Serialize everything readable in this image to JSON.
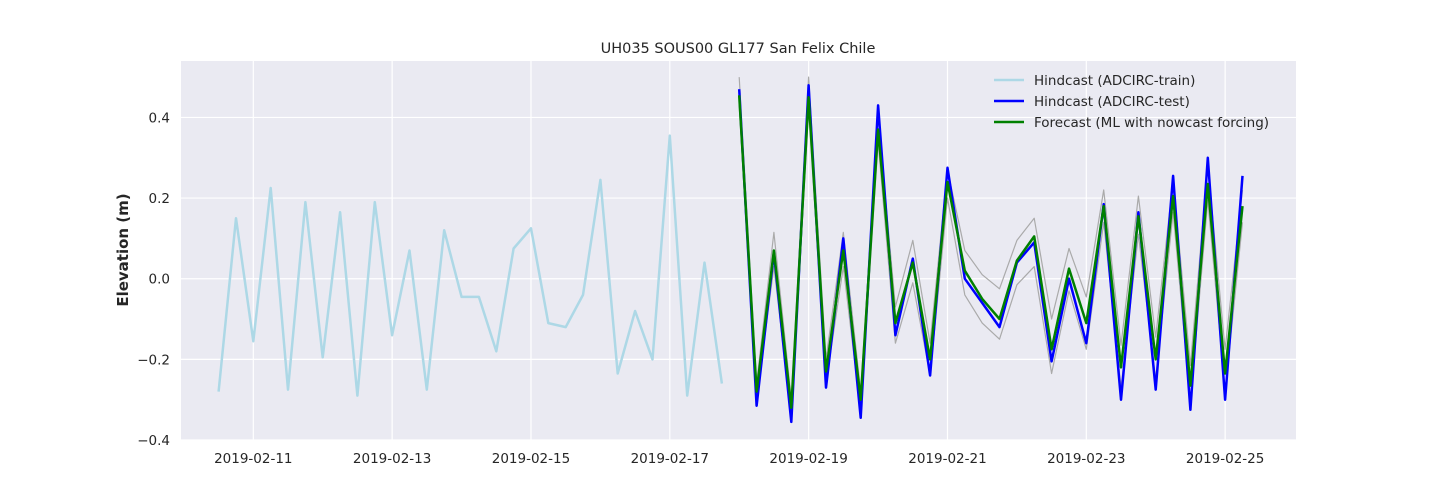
{
  "chart_data": {
    "type": "line",
    "title": "UH035 SOUS00 GL177 San Felix Chile",
    "xlabel": "",
    "ylabel": "Elevation (m)",
    "x_start": "2019-02-10",
    "x_end": "2019-02-26",
    "xlim": [
      "2019-02-09 23:00",
      "2019-02-26 00:30"
    ],
    "ylim": [
      -0.4,
      0.54
    ],
    "xticks": [
      "2019-02-11",
      "2019-02-13",
      "2019-02-15",
      "2019-02-17",
      "2019-02-19",
      "2019-02-21",
      "2019-02-23",
      "2019-02-25"
    ],
    "yticks": [
      -0.4,
      -0.2,
      0.0,
      0.2,
      0.4
    ],
    "ytick_labels": [
      "−0.4",
      "−0.2",
      "0.0",
      "0.2",
      "0.4"
    ],
    "grid": true,
    "legend_position": "top-right",
    "background_color": "#eaeaf2",
    "band_color": "#aaaaaa",
    "series": [
      {
        "name": "Hindcast (ADCIRC-train)",
        "color": "#add8e6",
        "width": 2.5,
        "points": [
          [
            "2019-02-10 12:00",
            -0.28
          ],
          [
            "2019-02-10 18:00",
            0.15
          ],
          [
            "2019-02-11 00:00",
            -0.155
          ],
          [
            "2019-02-11 06:00",
            0.225
          ],
          [
            "2019-02-11 12:00",
            -0.275
          ],
          [
            "2019-02-11 18:00",
            0.19
          ],
          [
            "2019-02-12 00:00",
            -0.195
          ],
          [
            "2019-02-12 06:00",
            0.165
          ],
          [
            "2019-02-12 12:00",
            -0.29
          ],
          [
            "2019-02-12 18:00",
            0.19
          ],
          [
            "2019-02-13 00:00",
            -0.14
          ],
          [
            "2019-02-13 06:00",
            0.07
          ],
          [
            "2019-02-13 12:00",
            -0.275
          ],
          [
            "2019-02-13 18:00",
            0.12
          ],
          [
            "2019-02-14 00:00",
            -0.045
          ],
          [
            "2019-02-14 06:00",
            -0.045
          ],
          [
            "2019-02-14 12:00",
            -0.18
          ],
          [
            "2019-02-14 18:00",
            0.075
          ],
          [
            "2019-02-15 00:00",
            0.125
          ],
          [
            "2019-02-15 06:00",
            -0.11
          ],
          [
            "2019-02-15 12:00",
            -0.12
          ],
          [
            "2019-02-15 18:00",
            -0.04
          ],
          [
            "2019-02-16 00:00",
            0.245
          ],
          [
            "2019-02-16 06:00",
            -0.235
          ],
          [
            "2019-02-16 12:00",
            -0.08
          ],
          [
            "2019-02-16 18:00",
            -0.2
          ],
          [
            "2019-02-17 00:00",
            0.355
          ],
          [
            "2019-02-17 06:00",
            -0.29
          ],
          [
            "2019-02-17 12:00",
            0.04
          ],
          [
            "2019-02-17 18:00",
            -0.26
          ]
        ]
      },
      {
        "name": "Hindcast (ADCIRC-test)",
        "color": "#0000ff",
        "width": 2.5,
        "points": [
          [
            "2019-02-18 00:00",
            0.47
          ],
          [
            "2019-02-18 06:00",
            -0.315
          ],
          [
            "2019-02-18 12:00",
            0.065
          ],
          [
            "2019-02-18 18:00",
            -0.355
          ],
          [
            "2019-02-19 00:00",
            0.48
          ],
          [
            "2019-02-19 06:00",
            -0.27
          ],
          [
            "2019-02-19 12:00",
            0.1
          ],
          [
            "2019-02-19 18:00",
            -0.345
          ],
          [
            "2019-02-20 00:00",
            0.43
          ],
          [
            "2019-02-20 06:00",
            -0.14
          ],
          [
            "2019-02-20 12:00",
            0.05
          ],
          [
            "2019-02-20 18:00",
            -0.24
          ],
          [
            "2019-02-21 00:00",
            0.275
          ],
          [
            "2019-02-21 06:00",
            0.0
          ],
          [
            "2019-02-21 12:00",
            -0.06
          ],
          [
            "2019-02-21 18:00",
            -0.12
          ],
          [
            "2019-02-22 00:00",
            0.04
          ],
          [
            "2019-02-22 06:00",
            0.09
          ],
          [
            "2019-02-22 12:00",
            -0.205
          ],
          [
            "2019-02-22 18:00",
            0.0
          ],
          [
            "2019-02-23 00:00",
            -0.16
          ],
          [
            "2019-02-23 06:00",
            0.185
          ],
          [
            "2019-02-23 12:00",
            -0.3
          ],
          [
            "2019-02-23 18:00",
            0.165
          ],
          [
            "2019-02-24 00:00",
            -0.275
          ],
          [
            "2019-02-24 06:00",
            0.255
          ],
          [
            "2019-02-24 12:00",
            -0.325
          ],
          [
            "2019-02-24 18:00",
            0.3
          ],
          [
            "2019-02-25 00:00",
            -0.3
          ],
          [
            "2019-02-25 06:00",
            0.255
          ]
        ]
      },
      {
        "name": "Forecast (ML with nowcast forcing)",
        "color": "#008000",
        "width": 2.5,
        "points": [
          [
            "2019-02-18 00:00",
            0.455
          ],
          [
            "2019-02-18 06:00",
            -0.28
          ],
          [
            "2019-02-18 12:00",
            0.07
          ],
          [
            "2019-02-18 18:00",
            -0.32
          ],
          [
            "2019-02-19 00:00",
            0.45
          ],
          [
            "2019-02-19 06:00",
            -0.23
          ],
          [
            "2019-02-19 12:00",
            0.07
          ],
          [
            "2019-02-19 18:00",
            -0.3
          ],
          [
            "2019-02-20 00:00",
            0.37
          ],
          [
            "2019-02-20 06:00",
            -0.11
          ],
          [
            "2019-02-20 12:00",
            0.04
          ],
          [
            "2019-02-20 18:00",
            -0.2
          ],
          [
            "2019-02-21 00:00",
            0.24
          ],
          [
            "2019-02-21 06:00",
            0.02
          ],
          [
            "2019-02-21 12:00",
            -0.05
          ],
          [
            "2019-02-21 18:00",
            -0.1
          ],
          [
            "2019-02-22 00:00",
            0.045
          ],
          [
            "2019-02-22 06:00",
            0.105
          ],
          [
            "2019-02-22 12:00",
            -0.175
          ],
          [
            "2019-02-22 18:00",
            0.025
          ],
          [
            "2019-02-23 00:00",
            -0.11
          ],
          [
            "2019-02-23 06:00",
            0.18
          ],
          [
            "2019-02-23 12:00",
            -0.22
          ],
          [
            "2019-02-23 18:00",
            0.155
          ],
          [
            "2019-02-24 00:00",
            -0.2
          ],
          [
            "2019-02-24 06:00",
            0.205
          ],
          [
            "2019-02-24 12:00",
            -0.265
          ],
          [
            "2019-02-24 18:00",
            0.235
          ],
          [
            "2019-02-25 00:00",
            -0.235
          ],
          [
            "2019-02-25 06:00",
            0.18
          ]
        ]
      }
    ],
    "band": {
      "upper": [
        [
          "2019-02-18 00:00",
          0.5
        ],
        [
          "2019-02-18 06:00",
          -0.26
        ],
        [
          "2019-02-18 12:00",
          0.115
        ],
        [
          "2019-02-18 18:00",
          -0.3
        ],
        [
          "2019-02-19 00:00",
          0.5
        ],
        [
          "2019-02-19 06:00",
          -0.2
        ],
        [
          "2019-02-19 12:00",
          0.115
        ],
        [
          "2019-02-19 18:00",
          -0.28
        ],
        [
          "2019-02-20 00:00",
          0.4
        ],
        [
          "2019-02-20 06:00",
          -0.07
        ],
        [
          "2019-02-20 12:00",
          0.095
        ],
        [
          "2019-02-20 18:00",
          -0.16
        ],
        [
          "2019-02-21 00:00",
          0.27
        ],
        [
          "2019-02-21 06:00",
          0.07
        ],
        [
          "2019-02-21 12:00",
          0.01
        ],
        [
          "2019-02-21 18:00",
          -0.025
        ],
        [
          "2019-02-22 00:00",
          0.095
        ],
        [
          "2019-02-22 06:00",
          0.15
        ],
        [
          "2019-02-22 12:00",
          -0.1
        ],
        [
          "2019-02-22 18:00",
          0.075
        ],
        [
          "2019-02-23 00:00",
          -0.045
        ],
        [
          "2019-02-23 06:00",
          0.22
        ],
        [
          "2019-02-23 12:00",
          -0.165
        ],
        [
          "2019-02-23 18:00",
          0.205
        ],
        [
          "2019-02-24 00:00",
          -0.145
        ],
        [
          "2019-02-24 06:00",
          0.245
        ],
        [
          "2019-02-24 12:00",
          -0.215
        ],
        [
          "2019-02-24 18:00",
          0.28
        ],
        [
          "2019-02-25 00:00",
          -0.175
        ],
        [
          "2019-02-25 06:00",
          0.22
        ]
      ],
      "lower": [
        [
          "2019-02-18 00:00",
          0.43
        ],
        [
          "2019-02-18 06:00",
          -0.3
        ],
        [
          "2019-02-18 12:00",
          0.03
        ],
        [
          "2019-02-18 18:00",
          -0.34
        ],
        [
          "2019-02-19 00:00",
          0.42
        ],
        [
          "2019-02-19 06:00",
          -0.26
        ],
        [
          "2019-02-19 12:00",
          0.03
        ],
        [
          "2019-02-19 18:00",
          -0.33
        ],
        [
          "2019-02-20 00:00",
          0.34
        ],
        [
          "2019-02-20 06:00",
          -0.16
        ],
        [
          "2019-02-20 12:00",
          -0.01
        ],
        [
          "2019-02-20 18:00",
          -0.24
        ],
        [
          "2019-02-21 00:00",
          0.2
        ],
        [
          "2019-02-21 06:00",
          -0.04
        ],
        [
          "2019-02-21 12:00",
          -0.11
        ],
        [
          "2019-02-21 18:00",
          -0.15
        ],
        [
          "2019-02-22 00:00",
          -0.015
        ],
        [
          "2019-02-22 06:00",
          0.03
        ],
        [
          "2019-02-22 12:00",
          -0.235
        ],
        [
          "2019-02-22 18:00",
          -0.03
        ],
        [
          "2019-02-23 00:00",
          -0.175
        ],
        [
          "2019-02-23 06:00",
          0.14
        ],
        [
          "2019-02-23 12:00",
          -0.27
        ],
        [
          "2019-02-23 18:00",
          0.11
        ],
        [
          "2019-02-24 00:00",
          -0.25
        ],
        [
          "2019-02-24 06:00",
          0.165
        ],
        [
          "2019-02-24 12:00",
          -0.305
        ],
        [
          "2019-02-24 18:00",
          0.195
        ],
        [
          "2019-02-25 00:00",
          -0.28
        ],
        [
          "2019-02-25 06:00",
          0.14
        ]
      ]
    }
  }
}
